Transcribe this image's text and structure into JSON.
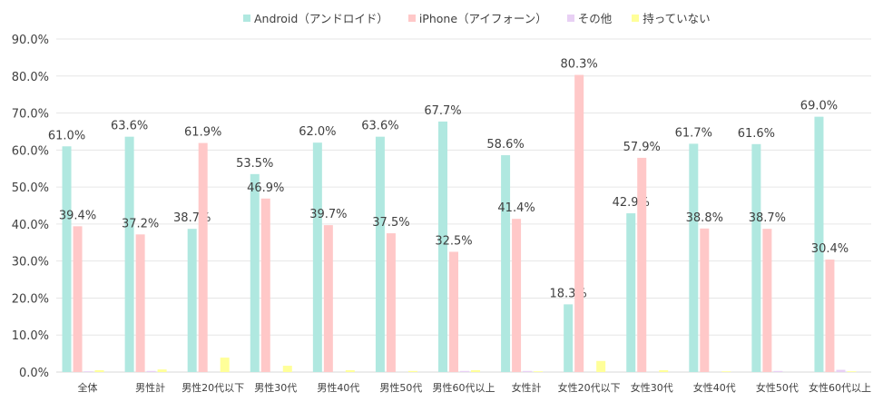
{
  "chart_data": {
    "type": "bar",
    "title": "",
    "xlabel": "",
    "ylabel": "",
    "ylim": [
      0,
      90
    ],
    "yticks": [
      "0.0%",
      "10.0%",
      "20.0%",
      "30.0%",
      "40.0%",
      "50.0%",
      "60.0%",
      "70.0%",
      "80.0%",
      "90.0%"
    ],
    "grid": true,
    "legend_position": "top",
    "categories": [
      "全体",
      "男性計",
      "男性20代以下",
      "男性30代",
      "男性40代",
      "男性50代",
      "男性60代以上",
      "女性計",
      "女性20代以下",
      "女性30代",
      "女性40代",
      "女性50代",
      "女性60代以上"
    ],
    "series": [
      {
        "name": "Android（アンドロイド）",
        "color": "#b0e8e0",
        "labeled": true,
        "values": [
          61.0,
          63.6,
          38.7,
          53.5,
          62.0,
          63.6,
          67.7,
          58.6,
          18.3,
          42.9,
          61.7,
          61.6,
          69.0
        ]
      },
      {
        "name": "iPhone（アイフォーン）",
        "color": "#ffc8c8",
        "labeled": true,
        "values": [
          39.4,
          37.2,
          61.9,
          46.9,
          39.7,
          37.5,
          32.5,
          41.4,
          80.3,
          57.9,
          38.8,
          38.7,
          30.4
        ]
      },
      {
        "name": "その他",
        "color": "#e8d0f4",
        "labeled": false,
        "values": [
          0.2,
          0.3,
          0.0,
          0.0,
          0.0,
          0.0,
          0.3,
          0.3,
          0.0,
          0.0,
          0.0,
          0.3,
          0.6
        ]
      },
      {
        "name": "持っていない",
        "color": "#ffff99",
        "labeled": false,
        "values": [
          0.5,
          0.7,
          3.9,
          1.7,
          0.5,
          0.3,
          0.5,
          0.2,
          3.0,
          0.5,
          0.2,
          0.0,
          0.2
        ]
      }
    ]
  }
}
